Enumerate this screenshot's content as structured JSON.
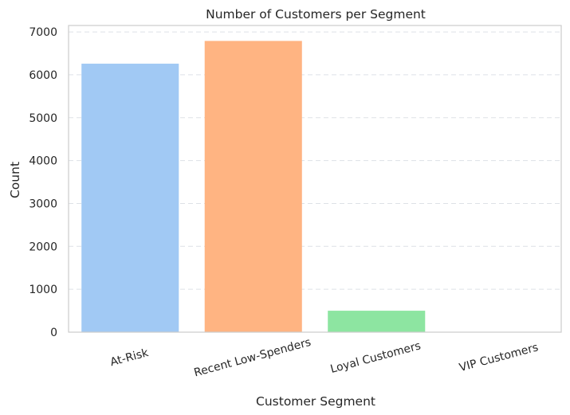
{
  "chart_data": {
    "type": "bar",
    "title": "Number of Customers per Segment",
    "xlabel": "Customer Segment",
    "ylabel": "Count",
    "categories": [
      "At-Risk",
      "Recent Low-Spenders",
      "Loyal Customers",
      "VIP Customers"
    ],
    "values": [
      6260,
      6790,
      500,
      0
    ],
    "colors": [
      "#a1c9f4",
      "#ffb482",
      "#8de5a1",
      "#ff9f9b"
    ],
    "ylim": [
      0,
      7150
    ],
    "yticks": [
      0,
      1000,
      2000,
      3000,
      4000,
      5000,
      6000,
      7000
    ],
    "grid": true,
    "legend": "none"
  }
}
